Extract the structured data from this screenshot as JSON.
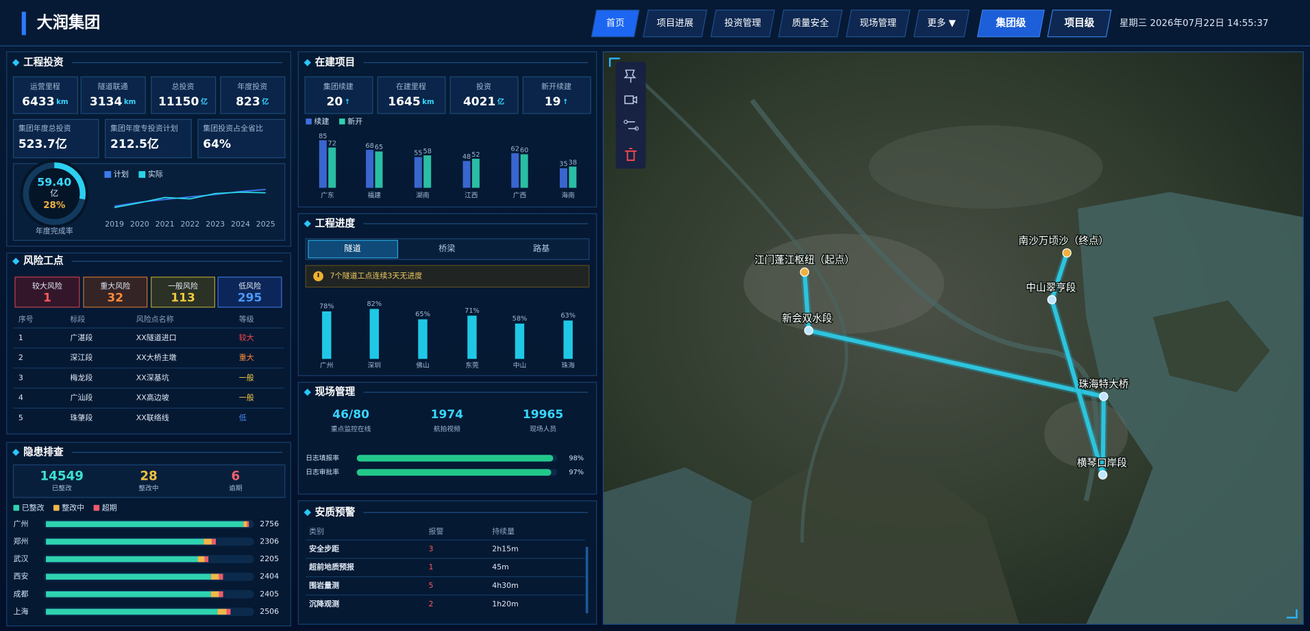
{
  "header": {
    "title": "大润集团",
    "nav": [
      "首页",
      "项目进展",
      "投资管理",
      "质量安全",
      "现场管理",
      "更多 ▼"
    ],
    "levels": [
      "集团级",
      "项目级"
    ],
    "datetime": "星期三 2026年07月22日 14:55:37"
  },
  "investment": {
    "title": "工程投资",
    "stats": [
      {
        "label": "运营里程",
        "value": 6433,
        "unit": "km"
      },
      {
        "label": "隧道联通",
        "value": 3134,
        "unit": "km"
      },
      {
        "label": "总投资",
        "value": 11150,
        "unit": "亿"
      },
      {
        "label": "年度投资",
        "value": 823,
        "unit": "亿"
      }
    ],
    "stats2": [
      {
        "label": "集团年度总投资",
        "value": "523.7亿"
      },
      {
        "label": "集团年度专投资计划",
        "value": "212.5亿"
      },
      {
        "label": "集团投资占全省比",
        "value": "64%"
      }
    ]
  },
  "risk": {
    "title": "风险工点",
    "levels": [
      {
        "label": "较大风险",
        "value": 1
      },
      {
        "label": "重大风险",
        "value": 32
      },
      {
        "label": "一般风险",
        "value": 113
      },
      {
        "label": "低风险",
        "value": 295
      }
    ],
    "columns": [
      "序号",
      "标段",
      "风险点名称",
      "等级"
    ],
    "rows": [
      [
        "1",
        "广湛段",
        "XX隧道进口",
        "较大"
      ],
      [
        "2",
        "深江段",
        "XX大桥主墩",
        "重大"
      ],
      [
        "3",
        "梅龙段",
        "XX深基坑",
        "一般"
      ],
      [
        "4",
        "广汕段",
        "XX高边坡",
        "一般"
      ],
      [
        "5",
        "珠肇段",
        "XX联络线",
        "低"
      ]
    ]
  },
  "hazard": {
    "title": "隐患排查",
    "stats": [
      {
        "value": 14549,
        "label": "已整改"
      },
      {
        "value": 28,
        "label": "整改中"
      },
      {
        "value": 6,
        "label": "逾期"
      }
    ]
  },
  "construction": {
    "title": "在建项目",
    "stats": [
      {
        "label": "集团续建",
        "value": 20,
        "unit": "↑"
      },
      {
        "label": "在建里程",
        "value": 1645,
        "unit": "km"
      },
      {
        "label": "投资",
        "value": 4021,
        "unit": "亿"
      },
      {
        "label": "新开续建",
        "value": 19,
        "unit": "↑"
      }
    ]
  },
  "progress": {
    "title": "工程进度",
    "tabs": [
      "隧道",
      "桥梁",
      "路基"
    ],
    "alert": "7个隧道工点连续3天无进度"
  },
  "site": {
    "title": "现场管理",
    "stats": [
      {
        "value": "46/80",
        "label": "重点监控在线"
      },
      {
        "value": 1974,
        "label": "航拍视频"
      },
      {
        "value": 19965,
        "label": "现场人员"
      }
    ]
  },
  "alarm": {
    "title": "安质预警",
    "columns": [
      "类别",
      "报警",
      "持续量"
    ],
    "rows": [
      [
        "安全步距",
        3,
        "2h15m"
      ],
      [
        "超前地质预报",
        1,
        "45m"
      ],
      [
        "围岩量测",
        5,
        "4h30m"
      ],
      [
        "沉降观测",
        2,
        "1h20m"
      ]
    ]
  },
  "map": {
    "stations": [
      "江门蓬江枢纽（起点）",
      "新会双水段",
      "南沙万顷沙（终点）",
      "中山翠亨段",
      "珠海特大桥",
      "横琴口岸段"
    ]
  },
  "chart_data": [
    {
      "type": "gauge",
      "title": "年度完成率",
      "amount": "59.40",
      "unit": "亿",
      "values": [
        28
      ],
      "value_labels": [
        "28%"
      ],
      "color": "#2bd0f0"
    },
    {
      "type": "line",
      "categories": [
        "2019",
        "2020",
        "2021",
        "2022",
        "2023",
        "2024",
        "2025"
      ],
      "series": [
        {
          "name": "计划",
          "color": "#3b7bf0",
          "values": [
            20,
            32,
            40,
            48,
            55,
            64,
            70
          ]
        },
        {
          "name": "实际",
          "color": "#2ad4e6",
          "values": [
            16,
            30,
            46,
            42,
            58,
            62,
            60
          ]
        }
      ],
      "ylim": [
        0,
        100
      ]
    },
    {
      "type": "bar",
      "categories": [
        "广东",
        "福建",
        "湖南",
        "江西",
        "广西",
        "海南"
      ],
      "series": [
        {
          "name": "续建",
          "color": "#3f6fe0",
          "values": [
            85,
            68,
            55,
            48,
            62,
            35
          ]
        },
        {
          "name": "新开",
          "color": "#2fd0b0",
          "values": [
            72,
            65,
            58,
            52,
            60,
            38
          ]
        }
      ],
      "ylim": [
        0,
        100
      ]
    },
    {
      "type": "bar",
      "categories": [
        "广州",
        "深圳",
        "佛山",
        "东莞",
        "中山",
        "珠海"
      ],
      "values": [
        78,
        82,
        65,
        71,
        58,
        63
      ],
      "value_labels": [
        "78%",
        "82%",
        "65%",
        "71%",
        "58%",
        "63%"
      ],
      "color": "#1fc8e6",
      "ylim": [
        0,
        100
      ]
    },
    {
      "type": "stacked-hbar",
      "categories": [
        "广州",
        "郑州",
        "武汉",
        "西安",
        "成都",
        "上海"
      ],
      "series": [
        {
          "name": "已整改",
          "color": "#2fd3b0",
          "values": [
            2680,
            2140,
            2060,
            2240,
            2240,
            2330
          ]
        },
        {
          "name": "整改中",
          "color": "#f0b84a",
          "values": [
            50,
            110,
            95,
            110,
            110,
            120
          ]
        },
        {
          "name": "超期",
          "color": "#f05a6a",
          "values": [
            26,
            56,
            50,
            54,
            55,
            56
          ]
        }
      ],
      "totals": [
        2756,
        2306,
        2205,
        2404,
        2405,
        2506
      ]
    },
    {
      "type": "progress",
      "categories": [
        "日志填报率",
        "日志审批率"
      ],
      "values": [
        98,
        97
      ],
      "value_labels": [
        "98%",
        "97%"
      ],
      "color": "#22c88a",
      "xlim": [
        0,
        100
      ]
    }
  ]
}
